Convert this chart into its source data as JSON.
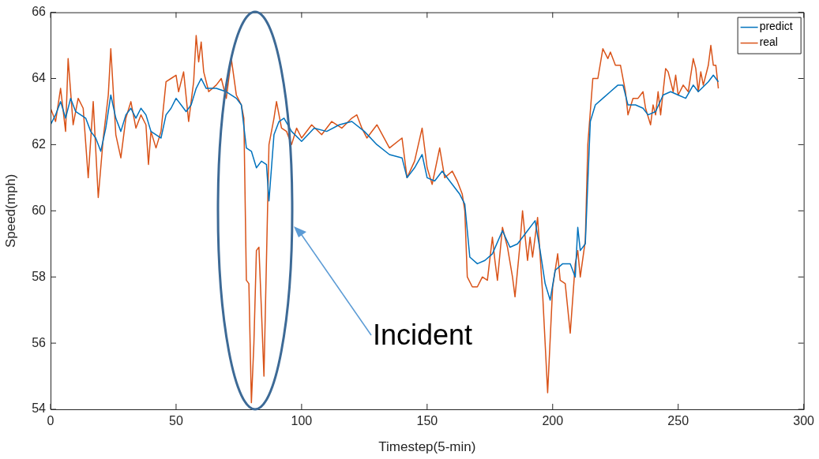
{
  "chart_data": {
    "type": "line",
    "xlabel": "Timestep(5-min)",
    "ylabel": "Speed(mph)",
    "xlim": [
      0,
      300
    ],
    "xticks": [
      0,
      50,
      100,
      150,
      200,
      250,
      300
    ],
    "ylim": [
      54,
      66
    ],
    "yticks": [
      54,
      56,
      58,
      60,
      62,
      64,
      66
    ],
    "grid": false,
    "legend": "top right",
    "marker": "none",
    "line_style": "solid",
    "annotations": [
      "Incident"
    ],
    "series": [
      {
        "name": "predict",
        "color": "#0072bd",
        "x": [
          0,
          2,
          4,
          6,
          8,
          10,
          12,
          14,
          16,
          18,
          20,
          22,
          24,
          26,
          28,
          30,
          32,
          34,
          36,
          38,
          40,
          42,
          44,
          46,
          48,
          50,
          52,
          54,
          56,
          58,
          60,
          62,
          66,
          70,
          74,
          76,
          78,
          80,
          82,
          84,
          86,
          87,
          89,
          91,
          93,
          96,
          100,
          105,
          110,
          115,
          120,
          125,
          130,
          135,
          140,
          142,
          145,
          148,
          150,
          153,
          156,
          160,
          163,
          165,
          167,
          170,
          173,
          176,
          180,
          183,
          186,
          190,
          193,
          195,
          197,
          199,
          201,
          204,
          207,
          209,
          210,
          211,
          213,
          215,
          217,
          220,
          223,
          226,
          228,
          230,
          233,
          236,
          238,
          241,
          244,
          247,
          250,
          253,
          256,
          258,
          262,
          264,
          266
        ],
        "values": [
          62.6,
          62.9,
          63.3,
          62.8,
          63.4,
          63.0,
          62.9,
          62.8,
          62.4,
          62.2,
          61.8,
          62.5,
          63.5,
          62.8,
          62.4,
          62.9,
          63.1,
          62.8,
          63.1,
          62.9,
          62.4,
          62.3,
          62.2,
          62.9,
          63.1,
          63.4,
          63.2,
          63.0,
          63.2,
          63.7,
          64.0,
          63.7,
          63.7,
          63.6,
          63.4,
          63.2,
          61.9,
          61.8,
          61.3,
          61.5,
          61.4,
          60.3,
          62.3,
          62.7,
          62.8,
          62.4,
          62.1,
          62.5,
          62.4,
          62.6,
          62.7,
          62.4,
          62.0,
          61.7,
          61.6,
          61.0,
          61.3,
          61.7,
          61.0,
          60.9,
          61.2,
          60.8,
          60.5,
          60.2,
          58.6,
          58.4,
          58.5,
          58.7,
          59.4,
          58.9,
          59.0,
          59.4,
          59.7,
          58.8,
          57.8,
          57.3,
          58.2,
          58.4,
          58.4,
          58.0,
          59.5,
          58.8,
          59.0,
          62.7,
          63.2,
          63.4,
          63.6,
          63.8,
          63.8,
          63.2,
          63.2,
          63.1,
          62.9,
          63.0,
          63.5,
          63.6,
          63.5,
          63.4,
          63.8,
          63.6,
          63.9,
          64.1,
          63.9
        ]
      },
      {
        "name": "real",
        "color": "#d95319",
        "x": [
          0,
          2,
          4,
          6,
          7,
          9,
          11,
          13,
          15,
          17,
          19,
          21,
          23,
          24,
          26,
          28,
          30,
          32,
          34,
          36,
          38,
          39,
          40,
          42,
          44,
          46,
          48,
          50,
          51,
          53,
          55,
          57,
          58,
          59,
          60,
          61,
          63,
          66,
          68,
          70,
          72,
          74,
          76,
          77,
          78,
          79,
          80,
          81,
          82,
          83,
          84,
          85,
          87,
          89,
          90,
          92,
          94,
          96,
          98,
          100,
          104,
          108,
          112,
          116,
          120,
          122,
          124,
          126,
          130,
          135,
          140,
          142,
          145,
          148,
          150,
          152,
          155,
          157,
          160,
          162,
          164,
          165,
          166,
          168,
          170,
          172,
          174,
          176,
          177,
          178,
          180,
          182,
          184,
          185,
          187,
          188,
          190,
          191,
          192,
          194,
          196,
          198,
          200,
          202,
          203,
          205,
          207,
          209,
          210,
          211,
          213,
          214,
          216,
          218,
          220,
          222,
          223,
          225,
          227,
          229,
          230,
          232,
          234,
          236,
          237,
          239,
          240,
          241,
          242,
          243,
          245,
          246,
          248,
          249,
          250,
          252,
          254,
          256,
          257,
          258,
          259,
          260,
          262,
          263,
          264,
          265,
          266
        ],
        "values": [
          63.1,
          62.7,
          63.7,
          62.4,
          64.6,
          62.6,
          63.4,
          63.1,
          61.0,
          63.3,
          60.4,
          62.2,
          63.5,
          64.9,
          62.3,
          61.6,
          62.8,
          63.3,
          62.5,
          62.9,
          62.6,
          61.4,
          62.4,
          61.9,
          62.4,
          63.9,
          64.0,
          64.1,
          63.6,
          64.2,
          62.7,
          63.9,
          65.3,
          64.5,
          65.1,
          64.2,
          63.6,
          63.8,
          64.0,
          63.4,
          64.6,
          63.5,
          63.2,
          62.8,
          57.9,
          57.8,
          54.2,
          56.0,
          58.8,
          58.9,
          57.0,
          55.0,
          62.0,
          62.8,
          63.3,
          62.5,
          62.4,
          62.0,
          62.5,
          62.2,
          62.6,
          62.3,
          62.7,
          62.5,
          62.8,
          62.9,
          62.5,
          62.2,
          62.6,
          61.9,
          62.2,
          61.0,
          61.5,
          62.5,
          61.3,
          60.8,
          61.9,
          61.0,
          61.2,
          60.9,
          60.5,
          60.0,
          58.0,
          57.7,
          57.7,
          58.0,
          57.9,
          59.2,
          58.5,
          57.9,
          59.5,
          58.9,
          58.0,
          57.4,
          59.0,
          60.0,
          58.5,
          59.2,
          58.6,
          59.8,
          57.5,
          54.5,
          57.7,
          58.7,
          57.9,
          57.8,
          56.3,
          58.4,
          58.8,
          58.0,
          59.1,
          62.0,
          64.0,
          64.0,
          64.9,
          64.6,
          64.8,
          64.4,
          64.4,
          63.6,
          62.9,
          63.4,
          63.4,
          63.6,
          63.1,
          62.6,
          63.2,
          62.9,
          63.6,
          62.9,
          64.3,
          64.2,
          63.6,
          64.1,
          63.5,
          63.8,
          63.6,
          64.6,
          64.3,
          63.6,
          64.2,
          63.8,
          64.4,
          65.0,
          64.4,
          64.4,
          63.7
        ]
      }
    ]
  }
}
